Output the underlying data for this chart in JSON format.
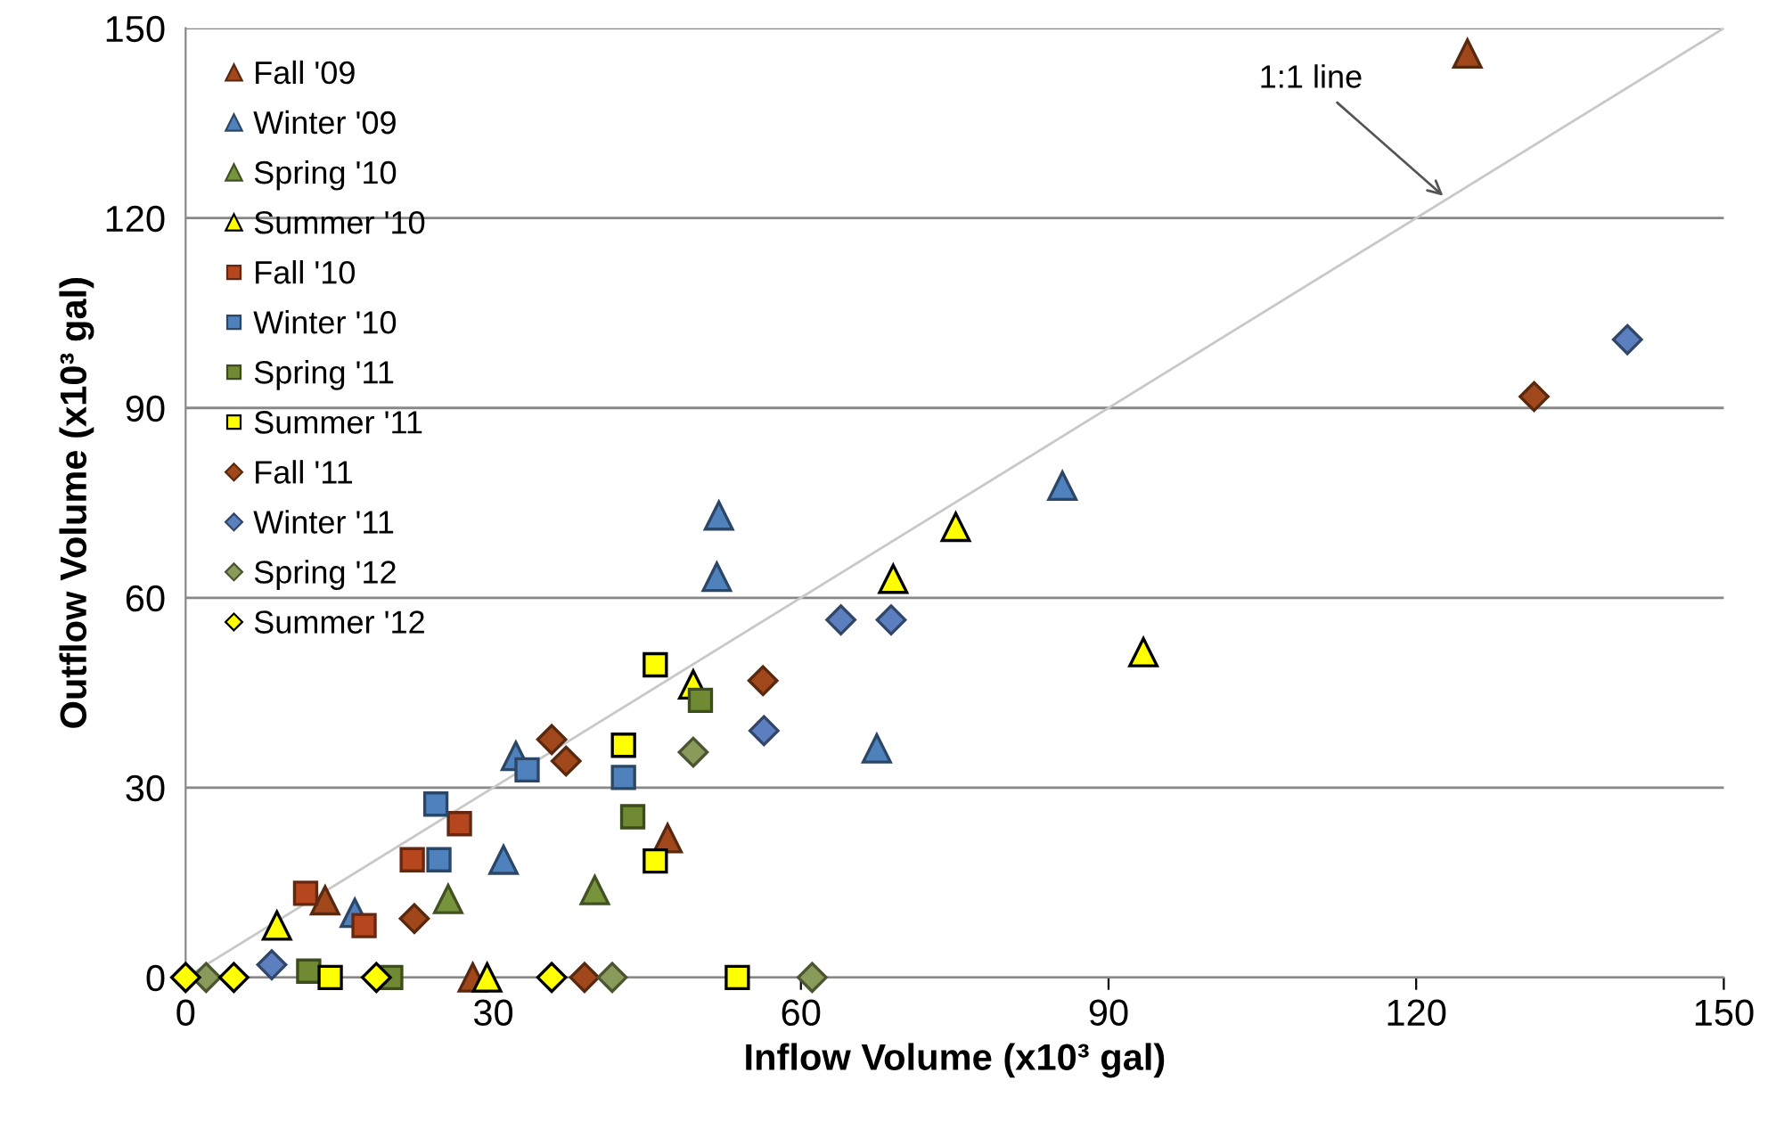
{
  "chart_data": {
    "type": "scatter",
    "xlabel": "Inflow Volume (x10³ gal)",
    "ylabel": "Outflow Volume (x10³ gal)",
    "xlim": [
      0,
      150
    ],
    "xticks": [
      0,
      30,
      60,
      90,
      120,
      150
    ],
    "ylim": [
      0,
      150
    ],
    "yticks": [
      0,
      30,
      60,
      90,
      120,
      150
    ],
    "grid": "y",
    "legend": "top left",
    "annotations": [
      {
        "text": "1:1 line",
        "x": 123,
        "y": 123
      }
    ],
    "series": [
      {
        "name": "Fall '09",
        "color": "#a0481c",
        "marker": "triangle",
        "x": [
          125,
          47,
          13.6,
          28
        ],
        "values": [
          146,
          22,
          12.2,
          0
        ]
      },
      {
        "name": "Winter '09",
        "color": "#4f81bd",
        "marker": "triangle",
        "x": [
          52,
          51.8,
          85.5,
          67.4,
          32.2,
          31,
          16.5
        ],
        "values": [
          73,
          63.3,
          77.7,
          36.2,
          35,
          18.6,
          10.2
        ]
      },
      {
        "name": "Spring '10",
        "color": "#77933c",
        "marker": "triangle",
        "x": [
          39.9,
          25.6
        ],
        "values": [
          13.8,
          12.4
        ]
      },
      {
        "name": "Summer '10",
        "color": "#ffff00",
        "marker": "triangle",
        "x": [
          75.1,
          69,
          93.4,
          49.5,
          8.9,
          29.4
        ],
        "values": [
          71.2,
          63,
          51.4,
          46.3,
          8.2,
          0
        ]
      },
      {
        "name": "Fall '10",
        "color": "#b5461e",
        "marker": "square",
        "x": [
          22.1,
          26.7,
          11.7,
          17.4
        ],
        "values": [
          18.6,
          24.3,
          13.3,
          8.2
        ]
      },
      {
        "name": "Winter '10",
        "color": "#4f81bd",
        "marker": "square",
        "x": [
          24.4,
          24.7,
          33.3,
          42.7
        ],
        "values": [
          27.4,
          18.6,
          32.8,
          31.6
        ]
      },
      {
        "name": "Spring '11",
        "color": "#6f8a32",
        "marker": "square",
        "x": [
          43.6,
          50.2,
          20,
          12
        ],
        "values": [
          25.4,
          43.8,
          0,
          1
        ]
      },
      {
        "name": "Summer '11",
        "color": "#ffff00",
        "marker": "square",
        "x": [
          45.8,
          42.7,
          45.8,
          53.8,
          14.1
        ],
        "values": [
          49.4,
          36.7,
          18.4,
          0,
          0
        ]
      },
      {
        "name": "Fall '11",
        "color": "#a0481c",
        "marker": "diamond",
        "x": [
          56.3,
          35.7,
          37.1,
          22.3,
          38.9,
          131.5
        ],
        "values": [
          46.9,
          37.6,
          34.2,
          9.3,
          0,
          91.8
        ]
      },
      {
        "name": "Winter '11",
        "color": "#5b7fbf",
        "marker": "diamond",
        "x": [
          140.6,
          63.9,
          68.8,
          56.4,
          8.4
        ],
        "values": [
          100.8,
          56.5,
          56.5,
          39,
          2
        ]
      },
      {
        "name": "Spring '12",
        "color": "#8a9a5b",
        "marker": "diamond",
        "x": [
          49.5,
          41.6,
          61.1,
          2
        ],
        "values": [
          35.6,
          0,
          0,
          0
        ]
      },
      {
        "name": "Summer '12",
        "color": "#ffff00",
        "marker": "diamond",
        "x": [
          0,
          4.7,
          18.6,
          35.7
        ],
        "values": [
          0,
          0,
          0,
          0
        ]
      },
      {
        "type": "line",
        "color": "#c8c8c8",
        "x": [
          0,
          150
        ],
        "values": [
          0,
          150
        ]
      }
    ]
  }
}
